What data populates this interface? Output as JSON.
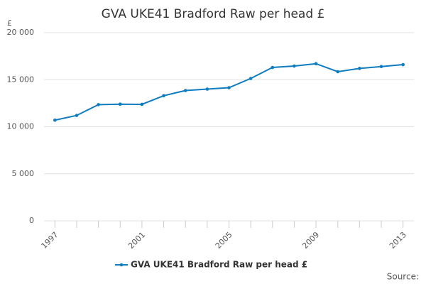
{
  "chart_data": {
    "type": "line",
    "title": "GVA UKE41 Bradford Raw per head £",
    "y_label": "£",
    "source": "Source:",
    "x": [
      1997,
      1998,
      1999,
      2000,
      2001,
      2002,
      2003,
      2004,
      2005,
      2006,
      2007,
      2008,
      2009,
      2010,
      2011,
      2012,
      2013
    ],
    "series": [
      {
        "name": "GVA UKE41 Bradford Raw per head £",
        "color": "#0f7cbf",
        "values": [
          10700,
          11200,
          12350,
          12400,
          12380,
          13300,
          13850,
          14000,
          14150,
          15130,
          16300,
          16450,
          16700,
          15850,
          16200,
          16400,
          16600
        ]
      }
    ],
    "xlim": [
      1996.5,
      2013.5
    ],
    "xticks": [
      1997,
      2001,
      2005,
      2009,
      2013
    ],
    "ylim": [
      0,
      20000
    ],
    "yticks": [
      0,
      {
        "value": 5000,
        "label": "5 000"
      },
      {
        "value": 10000,
        "label": "10 000"
      },
      {
        "value": 15000,
        "label": "15 000"
      },
      {
        "value": 20000,
        "label": "20 000"
      }
    ],
    "grid": true
  }
}
